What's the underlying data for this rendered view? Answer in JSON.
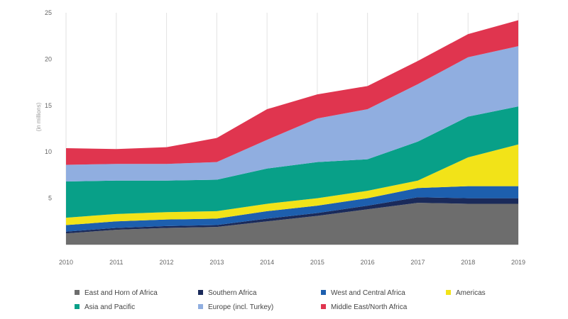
{
  "chart_data": {
    "type": "area",
    "stacked": true,
    "ylabel": "(in millions)",
    "xlabel": "",
    "x": [
      "2010",
      "2011",
      "2012",
      "2013",
      "2014",
      "2015",
      "2016",
      "2017",
      "2018",
      "2019"
    ],
    "ylim": [
      0,
      25
    ],
    "yticks": [
      "5",
      "10",
      "15",
      "20",
      "25"
    ],
    "grid": "vertical",
    "legend_position": "bottom",
    "series": [
      {
        "name": "East and Horn of Africa",
        "color": "#6d6d6d",
        "values": [
          1.2,
          1.6,
          1.8,
          1.9,
          2.5,
          3.1,
          3.8,
          4.5,
          4.4,
          4.4
        ]
      },
      {
        "name": "Southern Africa",
        "color": "#1a2a5a",
        "values": [
          0.2,
          0.2,
          0.2,
          0.2,
          0.3,
          0.3,
          0.4,
          0.6,
          0.6,
          0.6
        ]
      },
      {
        "name": "West and Central Africa",
        "color": "#1d5fae",
        "values": [
          0.7,
          0.7,
          0.7,
          0.7,
          0.8,
          0.8,
          0.8,
          1.0,
          1.3,
          1.3
        ]
      },
      {
        "name": "Americas",
        "color": "#f2e318",
        "values": [
          0.8,
          0.8,
          0.8,
          0.8,
          0.8,
          0.8,
          0.8,
          0.8,
          3.1,
          4.5
        ]
      },
      {
        "name": "Asia and Pacific",
        "color": "#08a088",
        "values": [
          3.9,
          3.6,
          3.4,
          3.4,
          3.8,
          3.9,
          3.4,
          4.2,
          4.4,
          4.1
        ]
      },
      {
        "name": "Europe (incl. Turkey)",
        "color": "#90aee0",
        "values": [
          1.8,
          1.8,
          1.8,
          1.9,
          3.1,
          4.7,
          5.4,
          6.2,
          6.4,
          6.5
        ]
      },
      {
        "name": "Middle East/North Africa",
        "color": "#e0354f",
        "values": [
          1.8,
          1.6,
          1.8,
          2.6,
          3.3,
          2.6,
          2.5,
          2.5,
          2.5,
          2.8
        ]
      }
    ]
  }
}
